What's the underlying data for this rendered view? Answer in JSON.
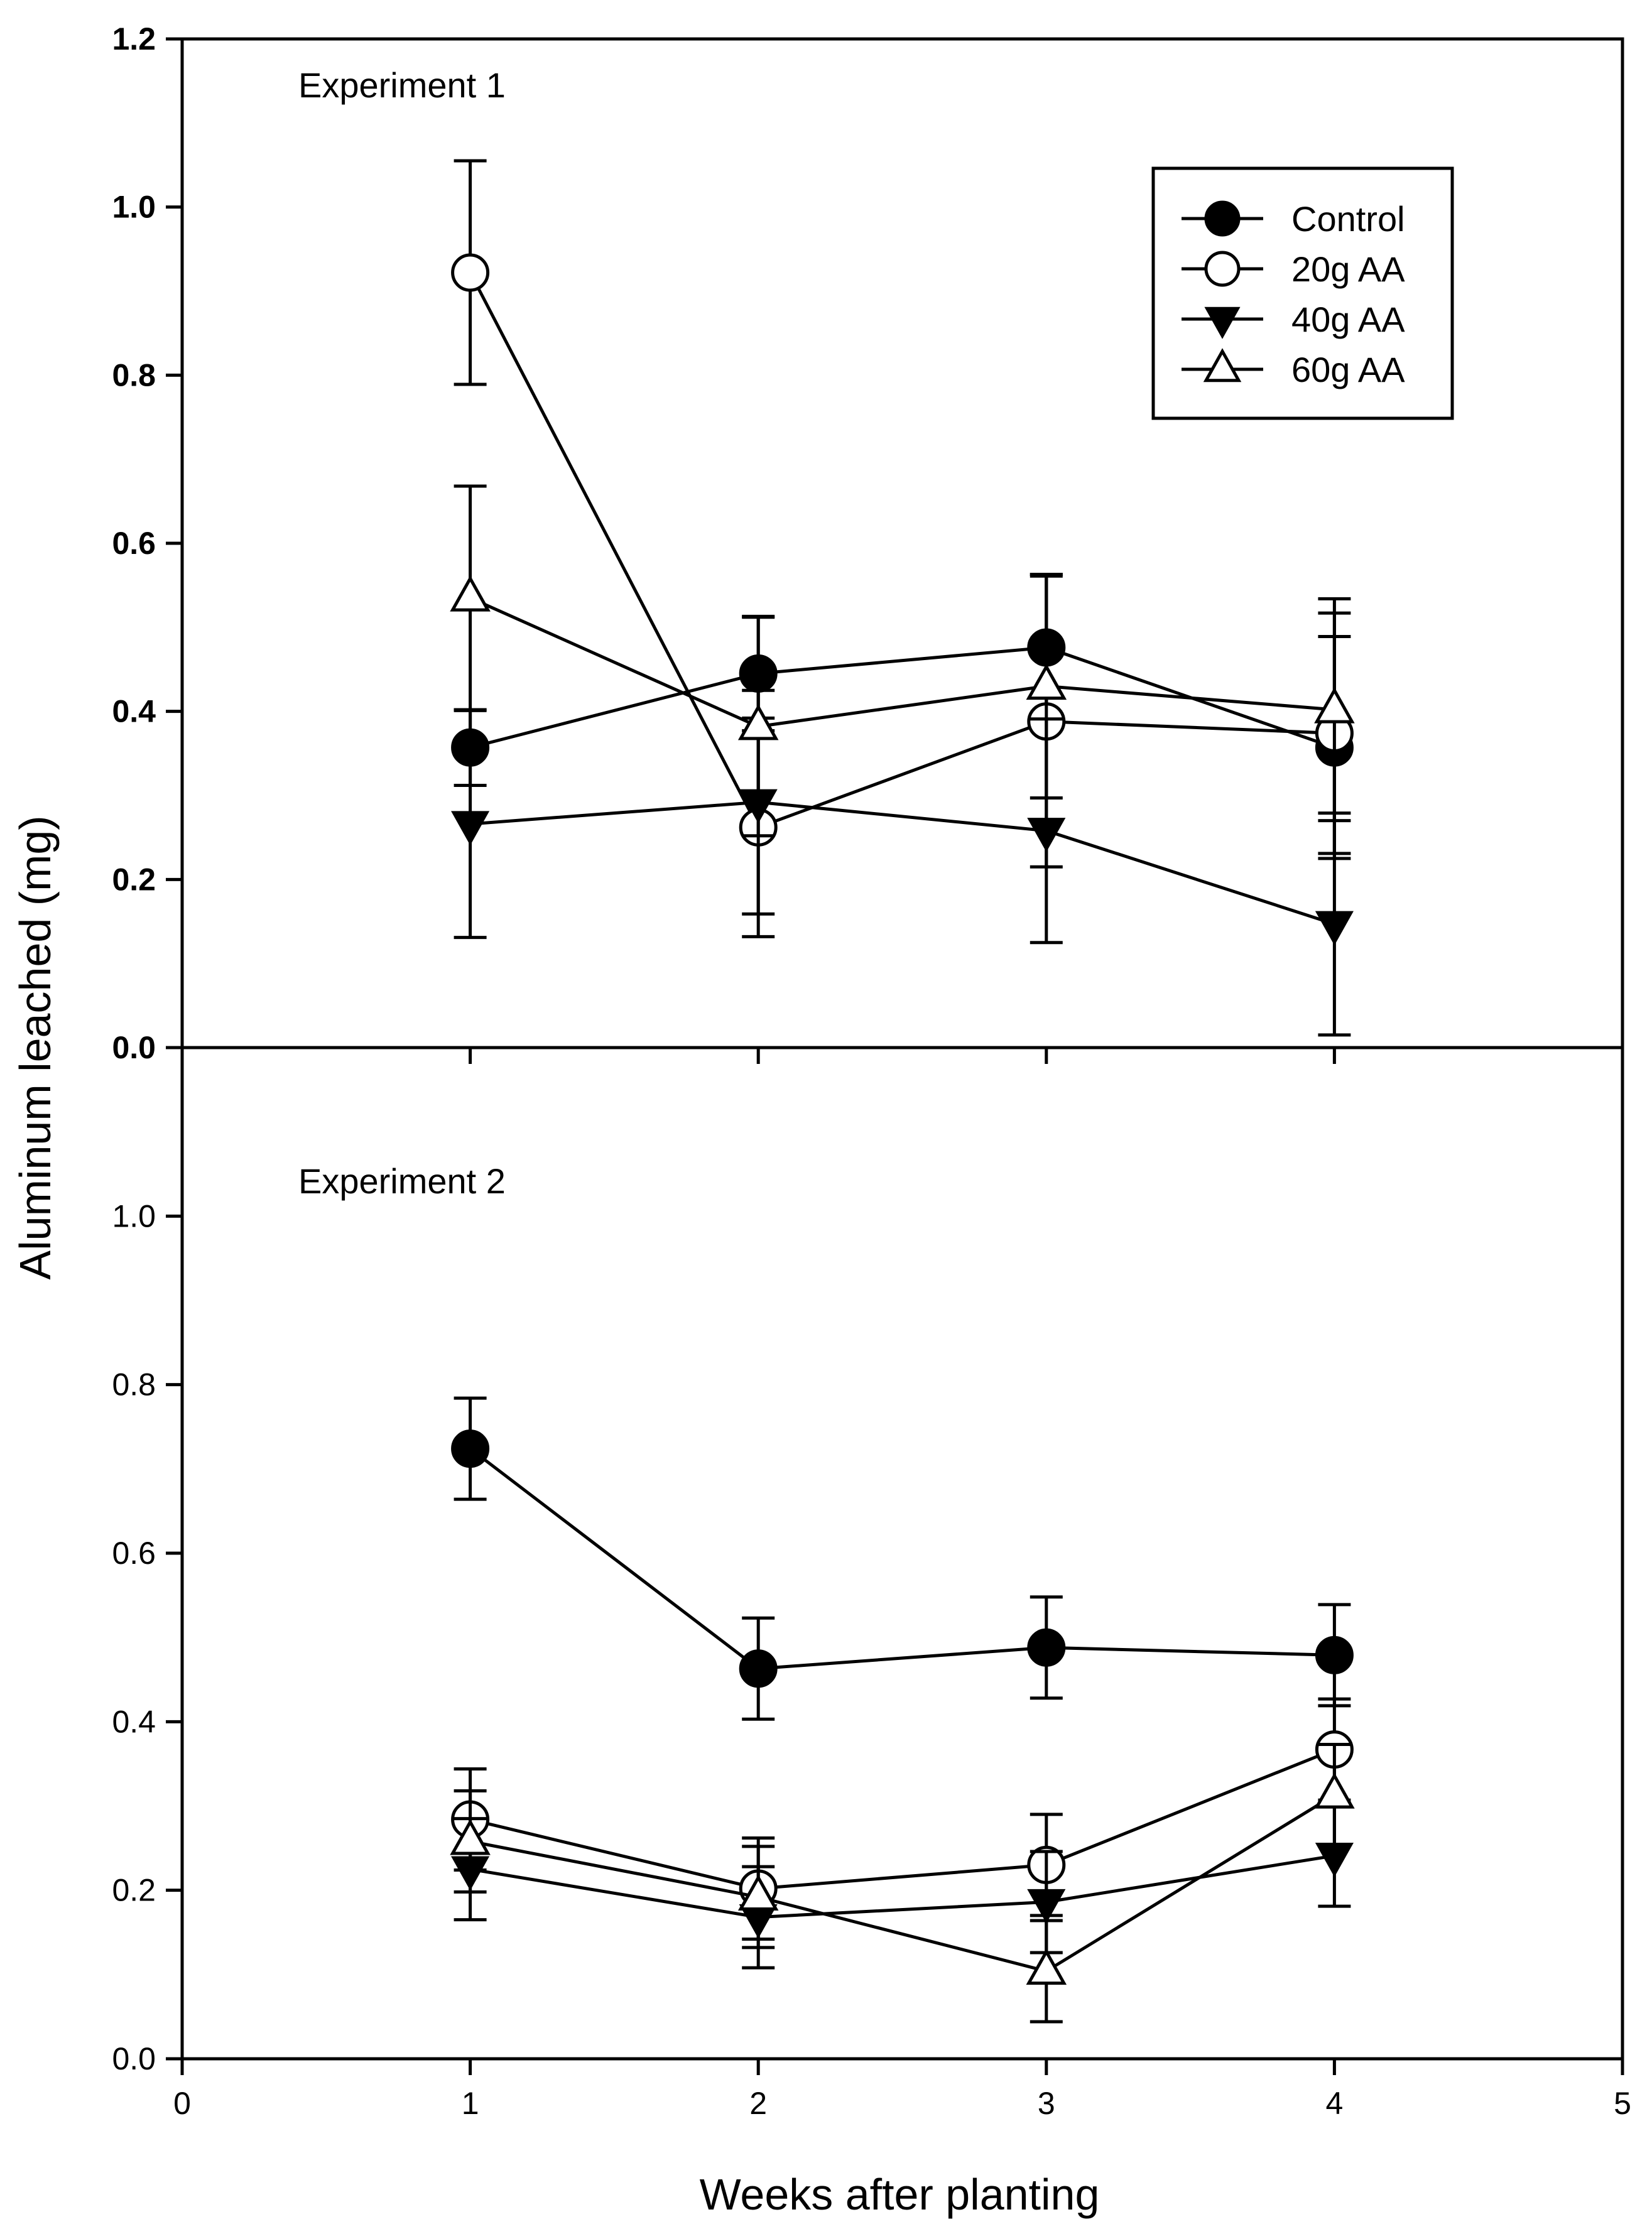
{
  "chart_data": {
    "type": "line",
    "xlabel": "Weeks after planting",
    "ylabel": "Aluminum leached (mg)",
    "xlim": [
      0,
      5
    ],
    "x_ticks": [
      0,
      1,
      2,
      3,
      4,
      5
    ],
    "ylim": [
      0,
      1.2
    ],
    "legend_position": "top-right",
    "legend": [
      "Control",
      "20g AA",
      "40g AA",
      "60g AA"
    ],
    "panels": [
      {
        "label": "Experiment 1",
        "y_ticks": [
          "0.0",
          "0.2",
          "0.4",
          "0.6",
          "0.8",
          "1.0",
          "1.2"
        ],
        "show_legend": true,
        "series": [
          {
            "name": "Control",
            "marker": "circle-filled",
            "x": [
              1,
              2,
              3,
              4
            ],
            "values": [
              0.357,
              0.445,
              0.476,
              0.357
            ],
            "err": [
              0.045,
              0.068,
              0.087,
              0.132
            ]
          },
          {
            "name": "20g AA",
            "marker": "circle-open",
            "x": [
              1,
              2,
              3,
              4
            ],
            "values": [
              0.922,
              0.262,
              0.388,
              0.374
            ],
            "err": [
              0.133,
              0.13,
              0.173,
              0.143
            ]
          },
          {
            "name": "40g AA",
            "marker": "triangle-down-filled",
            "x": [
              1,
              2,
              3,
              4
            ],
            "values": [
              0.266,
              0.292,
              0.258,
              0.147
            ],
            "err": [
              0.135,
              0.133,
              0.133,
              0.132
            ]
          },
          {
            "name": "60g AA",
            "marker": "triangle-up-open",
            "x": [
              1,
              2,
              3,
              4
            ],
            "values": [
              0.535,
              0.382,
              0.43,
              0.402
            ],
            "err": [
              0.133,
              0.13,
              0.133,
              0.132
            ]
          }
        ]
      },
      {
        "label": "Experiment 2",
        "y_ticks": [
          "0.0",
          "0.2",
          "0.4",
          "0.6",
          "0.8",
          "1.0"
        ],
        "show_legend": false,
        "series": [
          {
            "name": "Control",
            "marker": "circle-filled",
            "x": [
              1,
              2,
              3,
              4
            ],
            "values": [
              0.724,
              0.463,
              0.488,
              0.479
            ],
            "err": [
              0.06,
              0.06,
              0.06,
              0.06
            ]
          },
          {
            "name": "20g AA",
            "marker": "circle-open",
            "x": [
              1,
              2,
              3,
              4
            ],
            "values": [
              0.284,
              0.202,
              0.23,
              0.367
            ],
            "err": [
              0.06,
              0.06,
              0.06,
              0.06
            ]
          },
          {
            "name": "40g AA",
            "marker": "triangle-down-filled",
            "x": [
              1,
              2,
              3,
              4
            ],
            "values": [
              0.225,
              0.168,
              0.186,
              0.241
            ],
            "err": [
              0.06,
              0.06,
              0.06,
              0.06
            ]
          },
          {
            "name": "60g AA",
            "marker": "triangle-up-open",
            "x": [
              1,
              2,
              3,
              4
            ],
            "values": [
              0.258,
              0.192,
              0.104,
              0.313
            ],
            "err": [
              0.06,
              0.06,
              0.06,
              0.06
            ]
          }
        ]
      }
    ]
  }
}
